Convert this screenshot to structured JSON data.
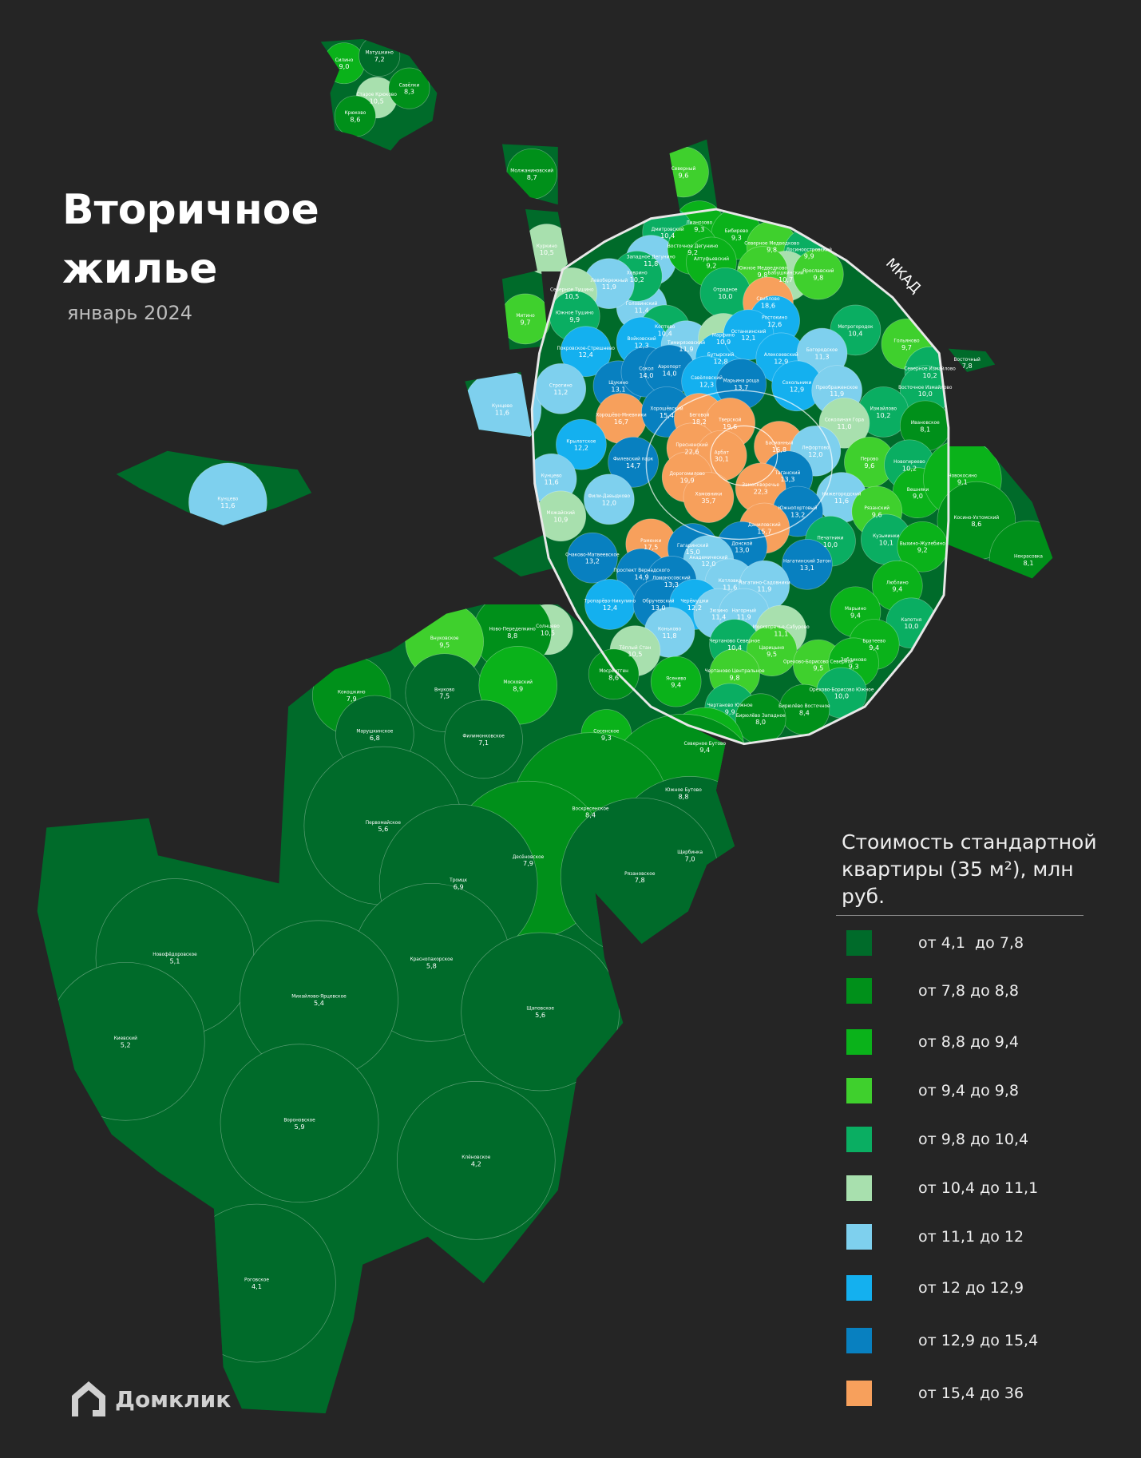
{
  "header": {
    "title": "Вторичное жилье",
    "subtitle": "январь 2024"
  },
  "map_labels": {
    "mkad": "МКАД"
  },
  "legend": {
    "title": "Стоимость стандартной квартиры (35 м²), млн руб.",
    "items": [
      {
        "label": "от 4,1  до 7,8",
        "color": "#006b2a"
      },
      {
        "label": "от 7,8 до 8,8",
        "color": "#00901a"
      },
      {
        "label": "от 8,8 до 9,4",
        "color": "#0ab21a"
      },
      {
        "label": "от 9,4 до 9,8",
        "color": "#3fd02d"
      },
      {
        "label": "от 9,8 до 10,4",
        "color": "#0aae62"
      },
      {
        "label": "от 10,4 до 11,1",
        "color": "#a8e0ae"
      },
      {
        "label": "от 11,1 до 12",
        "color": "#7ed0ee"
      },
      {
        "label": "от 12 до 12,9",
        "color": "#14b0ef"
      },
      {
        "label": "от 12,9 до 15,4",
        "color": "#0880c0"
      },
      {
        "label": "от 15,4 до 36",
        "color": "#f7a05c"
      }
    ]
  },
  "logo": {
    "text": "Домклик"
  },
  "districts": [
    {
      "name": "Силино",
      "value": "9,0"
    },
    {
      "name": "Матушкино",
      "value": "7,2"
    },
    {
      "name": "Старое Крюково",
      "value": "10,5"
    },
    {
      "name": "Савёлки",
      "value": "8,3"
    },
    {
      "name": "Крюково",
      "value": "8,6"
    },
    {
      "name": "Молжаниновский",
      "value": "8,7"
    },
    {
      "name": "Северный",
      "value": "9,6"
    },
    {
      "name": "Куркино",
      "value": "10,5"
    },
    {
      "name": "Митино",
      "value": "9,7"
    },
    {
      "name": "Кунцево",
      "value": "11,6"
    },
    {
      "name": "Кунцево",
      "value": "11,6"
    },
    {
      "name": "Лианозово",
      "value": "9,3"
    },
    {
      "name": "Бибирево",
      "value": "9,3"
    },
    {
      "name": "Дмитровский",
      "value": "10,4"
    },
    {
      "name": "Западное Дегунино",
      "value": "11,8"
    },
    {
      "name": "Восточное Дегунино",
      "value": "9,2"
    },
    {
      "name": "Алтуфьевский",
      "value": "9,2"
    },
    {
      "name": "Северное Медведково",
      "value": "9,8"
    },
    {
      "name": "Лосиноостровский",
      "value": "9,9"
    },
    {
      "name": "Бабушкинский",
      "value": "10,7"
    },
    {
      "name": "Южное Медведково",
      "value": "9,8"
    },
    {
      "name": "Ярославский",
      "value": "9,8"
    },
    {
      "name": "Головинский",
      "value": "11,4"
    },
    {
      "name": "Ховрино",
      "value": "10,2"
    },
    {
      "name": "Левобережный",
      "value": "11,9"
    },
    {
      "name": "Северное Тушино",
      "value": "10,5"
    },
    {
      "name": "Южное Тушино",
      "value": "9,9"
    },
    {
      "name": "Отрадное",
      "value": "10,0"
    },
    {
      "name": "Свиблово",
      "value": "18,6"
    },
    {
      "name": "Ростокино",
      "value": "12,6"
    },
    {
      "name": "Метрогородок",
      "value": "10,4"
    },
    {
      "name": "Гольяново",
      "value": "9,7"
    },
    {
      "name": "Восточный",
      "value": "7,8"
    },
    {
      "name": "Покровское-Стрешнево",
      "value": "12,4"
    },
    {
      "name": "Коптево",
      "value": "10,4"
    },
    {
      "name": "Войковский",
      "value": "12,3"
    },
    {
      "name": "Тимирязевский",
      "value": "11,9"
    },
    {
      "name": "Марфино",
      "value": "10,9"
    },
    {
      "name": "Бутырский",
      "value": "12,8"
    },
    {
      "name": "Останкинский",
      "value": "12,1"
    },
    {
      "name": "Алексеевский",
      "value": "12,9"
    },
    {
      "name": "Богородское",
      "value": "11,3"
    },
    {
      "name": "Северное Измайлово",
      "value": "10,2"
    },
    {
      "name": "Восточное Измайлово",
      "value": "10,0"
    },
    {
      "name": "Строгино",
      "value": "11,2"
    },
    {
      "name": "Щукино",
      "value": "13,1"
    },
    {
      "name": "Сокол",
      "value": "14,0"
    },
    {
      "name": "Аэропорт",
      "value": "14,0"
    },
    {
      "name": "Савёловский",
      "value": "12,3"
    },
    {
      "name": "Марьина роща",
      "value": "13,7"
    },
    {
      "name": "Сокольники",
      "value": "12,9"
    },
    {
      "name": "Преображенское",
      "value": "11,9"
    },
    {
      "name": "Измайлово",
      "value": "10,2"
    },
    {
      "name": "Ивановское",
      "value": "8,1"
    },
    {
      "name": "Хорошёво-Мневники",
      "value": "16,7"
    },
    {
      "name": "Хорошёвский",
      "value": "15,4"
    },
    {
      "name": "Беговой",
      "value": "18,2"
    },
    {
      "name": "Тверской",
      "value": "19,6"
    },
    {
      "name": "Соколиная Гора",
      "value": "11,0"
    },
    {
      "name": "Крылатское",
      "value": "12,2"
    },
    {
      "name": "Пресненский",
      "value": "22,6"
    },
    {
      "name": "Арбат",
      "value": "30,1"
    },
    {
      "name": "Басманный",
      "value": "16,8"
    },
    {
      "name": "Лефортово",
      "value": "12,0"
    },
    {
      "name": "Перово",
      "value": "9,6"
    },
    {
      "name": "Новогиреево",
      "value": "10,2"
    },
    {
      "name": "Филевский парк",
      "value": "14,7"
    },
    {
      "name": "Кунцево",
      "value": "11,6"
    },
    {
      "name": "Таганский",
      "value": "13,3"
    },
    {
      "name": "Дорогомилово",
      "value": "19,9"
    },
    {
      "name": "Хамовники",
      "value": "35,7"
    },
    {
      "name": "Замоскворечье",
      "value": "22,3"
    },
    {
      "name": "Вешняки",
      "value": "9,0"
    },
    {
      "name": "Новокосино",
      "value": "9,1"
    },
    {
      "name": "Фили-Давыдково",
      "value": "12,0"
    },
    {
      "name": "Можайский",
      "value": "10,9"
    },
    {
      "name": "Нижегородский",
      "value": "11,6"
    },
    {
      "name": "Южнопортовый",
      "value": "13,2"
    },
    {
      "name": "Рязанский",
      "value": "9,6"
    },
    {
      "name": "Даниловский",
      "value": "15,7"
    },
    {
      "name": "Косино-Ухтомский",
      "value": "8,6"
    },
    {
      "name": "Раменки",
      "value": "17,5"
    },
    {
      "name": "Гагаринский",
      "value": "15,0"
    },
    {
      "name": "Донской",
      "value": "13,0"
    },
    {
      "name": "Печатники",
      "value": "10,0"
    },
    {
      "name": "Кузьминки",
      "value": "10,1"
    },
    {
      "name": "Выхино-Жулебино",
      "value": "9,2"
    },
    {
      "name": "Некрасовка",
      "value": "8,1"
    },
    {
      "name": "Очаково-Матвеевское",
      "value": "13,2"
    },
    {
      "name": "Академический",
      "value": "12,0"
    },
    {
      "name": "Нагатинский Затон",
      "value": "13,1"
    },
    {
      "name": "Проспект Вернадского",
      "value": "14,9"
    },
    {
      "name": "Ломоносовский",
      "value": "13,3"
    },
    {
      "name": "Котловка",
      "value": "11,6"
    },
    {
      "name": "Нагатино-Садовники",
      "value": "11,9"
    },
    {
      "name": "Люблино",
      "value": "9,4"
    },
    {
      "name": "Тропарёво-Никулино",
      "value": "12,4"
    },
    {
      "name": "Обручевский",
      "value": "13,0"
    },
    {
      "name": "Черёмушки",
      "value": "12,2"
    },
    {
      "name": "Зюзино",
      "value": "11,4"
    },
    {
      "name": "Нагорный",
      "value": "11,9"
    },
    {
      "name": "Марьино",
      "value": "9,4"
    },
    {
      "name": "Капотня",
      "value": "10,0"
    },
    {
      "name": "Солнцево",
      "value": "10,5"
    },
    {
      "name": "Ново-Переделкино",
      "value": "8,8"
    },
    {
      "name": "Внуковское",
      "value": "9,5"
    },
    {
      "name": "Коньково",
      "value": "11,8"
    },
    {
      "name": "Москворечье-Сабурово",
      "value": "11,1"
    },
    {
      "name": "Тёплый Стан",
      "value": "10,5"
    },
    {
      "name": "Чертаново Северное",
      "value": "10,4"
    },
    {
      "name": "Царицыно",
      "value": "9,5"
    },
    {
      "name": "Братеево",
      "value": "9,4"
    },
    {
      "name": "Орехово-Борисово Северное",
      "value": "9,5"
    },
    {
      "name": "Зябликово",
      "value": "9,3"
    },
    {
      "name": "Мосрентген",
      "value": "8,6"
    },
    {
      "name": "Ясенево",
      "value": "9,4"
    },
    {
      "name": "Чертаново Центральное",
      "value": "9,8"
    },
    {
      "name": "Орехово-Борисово Южное",
      "value": "10,0"
    },
    {
      "name": "Кокошкино",
      "value": "7,9"
    },
    {
      "name": "Внуково",
      "value": "7,5"
    },
    {
      "name": "Московский",
      "value": "8,9"
    },
    {
      "name": "Чертаново Южное",
      "value": "9,9"
    },
    {
      "name": "Бирюлёво Восточное",
      "value": "8,4"
    },
    {
      "name": "Бирюлёво Западное",
      "value": "8,0"
    },
    {
      "name": "Марушкинское",
      "value": "6,8"
    },
    {
      "name": "Филимонковское",
      "value": "7,1"
    },
    {
      "name": "Сосенское",
      "value": "9,3"
    },
    {
      "name": "Северное Бутово",
      "value": "9,4"
    },
    {
      "name": "Южное Бутово",
      "value": "8,8"
    },
    {
      "name": "Воскресенское",
      "value": "8,4"
    },
    {
      "name": "Первомайское",
      "value": "5,6"
    },
    {
      "name": "Десёновское",
      "value": "7,9"
    },
    {
      "name": "Щербинка",
      "value": "7,0"
    },
    {
      "name": "Рязановское",
      "value": "7,8"
    },
    {
      "name": "Троицк",
      "value": "6,9"
    },
    {
      "name": "Новофёдоровское",
      "value": "5,1"
    },
    {
      "name": "Краснопахорское",
      "value": "5,8"
    },
    {
      "name": "Михайлово-Ярцевское",
      "value": "5,4"
    },
    {
      "name": "Щаповское",
      "value": "5,6"
    },
    {
      "name": "Киевский",
      "value": "5,2"
    },
    {
      "name": "Вороновское",
      "value": "5,9"
    },
    {
      "name": "Клёновское",
      "value": "4,2"
    },
    {
      "name": "Роговское",
      "value": "4,1"
    }
  ]
}
